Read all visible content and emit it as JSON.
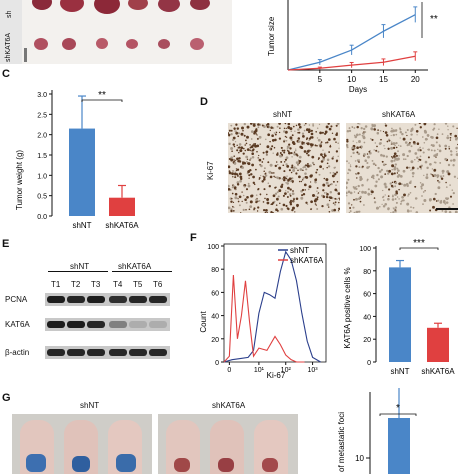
{
  "figure": {
    "panel_labels": {
      "c": "C",
      "d": "D",
      "e": "E",
      "f": "F",
      "g": "G"
    },
    "groups": {
      "control": "shNT",
      "knockdown": "shKAT6A"
    },
    "colors": {
      "shNT": "#4a86c8",
      "shKAT6A": "#e04040",
      "ihc_bg": "#e8dfd3",
      "ihc_dot": "#7a5a3a"
    },
    "panel_a": {
      "row_label_cropped": "sh",
      "row_label": "shKAT6A"
    },
    "panel_b": {
      "ylabel": "Tumor size",
      "xlabel": "Days",
      "xticks": [
        "5",
        "10",
        "15",
        "20"
      ],
      "significance": "**"
    },
    "panel_c": {
      "ylabel": "Tumor weight (g)",
      "yticks": [
        "0.0",
        "0.5",
        "1.0",
        "1.5",
        "2.0",
        "2.5",
        "3.0"
      ],
      "categories": [
        "shNT",
        "shKAT6A"
      ],
      "significance": "**"
    },
    "panel_d": {
      "col1": "shNT",
      "col2": "shKAT6A",
      "row_label": "Ki-67"
    },
    "panel_e": {
      "group1": "shNT",
      "group2": "shKAT6A",
      "lanes": [
        "T1",
        "T2",
        "T3",
        "T4",
        "T5",
        "T6"
      ],
      "rows": [
        "PCNA",
        "KAT6A",
        "β-actin"
      ]
    },
    "panel_f_hist": {
      "ylabel": "Count",
      "xlabel": "Ki-67",
      "yticks": [
        "0",
        "20",
        "40",
        "60",
        "80",
        "100"
      ],
      "xticks": [
        "0",
        "10¹",
        "10²",
        "10³"
      ],
      "legend": [
        "shNT",
        "shKAT6A"
      ]
    },
    "panel_f_bar": {
      "ylabel": "KAT6A positive cells %",
      "yticks": [
        "0",
        "20",
        "40",
        "60",
        "80",
        "100"
      ],
      "categories": [
        "shNT",
        "shKAT6A"
      ],
      "significance": "***"
    },
    "panel_g": {
      "col1": "shNT",
      "col2": "shKAT6A",
      "ylabel": "of metastatic foci",
      "ytick": "10",
      "significance": "*"
    }
  },
  "chart_data": [
    {
      "type": "line",
      "panel": "B",
      "x": [
        0,
        5,
        10,
        15,
        20
      ],
      "series": [
        {
          "name": "shNT",
          "values": [
            0,
            0.35,
            0.9,
            1.75,
            2.5
          ],
          "errors": [
            0,
            0.12,
            0.22,
            0.3,
            0.35
          ]
        },
        {
          "name": "shKAT6A",
          "values": [
            0,
            0.08,
            0.22,
            0.35,
            0.62
          ],
          "errors": [
            0,
            0.05,
            0.12,
            0.15,
            0.2
          ]
        }
      ],
      "xlabel": "Days",
      "ylabel": "Tumor size"
    },
    {
      "type": "bar",
      "panel": "C",
      "categories": [
        "shNT",
        "shKAT6A"
      ],
      "values": [
        2.15,
        0.45
      ],
      "errors": [
        0.8,
        0.3
      ],
      "ylabel": "Tumor weight (g)",
      "ylim": [
        0,
        3.0
      ]
    },
    {
      "type": "bar",
      "panel": "F",
      "categories": [
        "shNT",
        "shKAT6A"
      ],
      "values": [
        83,
        30
      ],
      "errors": [
        6,
        4
      ],
      "ylabel": "KAT6A positive cells %",
      "ylim": [
        0,
        100
      ]
    },
    {
      "type": "line",
      "panel": "F-histogram",
      "series": [
        {
          "name": "shNT",
          "x": [
            0.0,
            0.3,
            0.6,
            0.9,
            1.1,
            1.3,
            1.5,
            1.7,
            1.9,
            2.1,
            2.3,
            2.5,
            2.7,
            2.9,
            3.1,
            3.3,
            3.6
          ],
          "values": [
            0,
            2,
            3,
            4,
            10,
            42,
            60,
            58,
            55,
            78,
            95,
            88,
            70,
            42,
            18,
            4,
            0
          ]
        },
        {
          "name": "shKAT6A",
          "x": [
            0.0,
            0.2,
            0.35,
            0.5,
            0.65,
            0.8,
            0.95,
            1.1,
            1.3,
            1.6,
            1.9,
            2.1,
            2.3,
            2.5,
            2.7,
            3.0
          ],
          "values": [
            0,
            5,
            75,
            20,
            40,
            70,
            35,
            5,
            12,
            10,
            22,
            15,
            6,
            2,
            0,
            0
          ]
        }
      ],
      "xlabel": "Ki-67",
      "ylabel": "Count"
    },
    {
      "type": "bar",
      "panel": "G",
      "categories": [
        "shNT",
        "shKAT6A"
      ],
      "values": [
        11.5,
        null
      ],
      "errors": [
        3,
        null
      ],
      "ylabel": "of metastatic foci"
    }
  ]
}
